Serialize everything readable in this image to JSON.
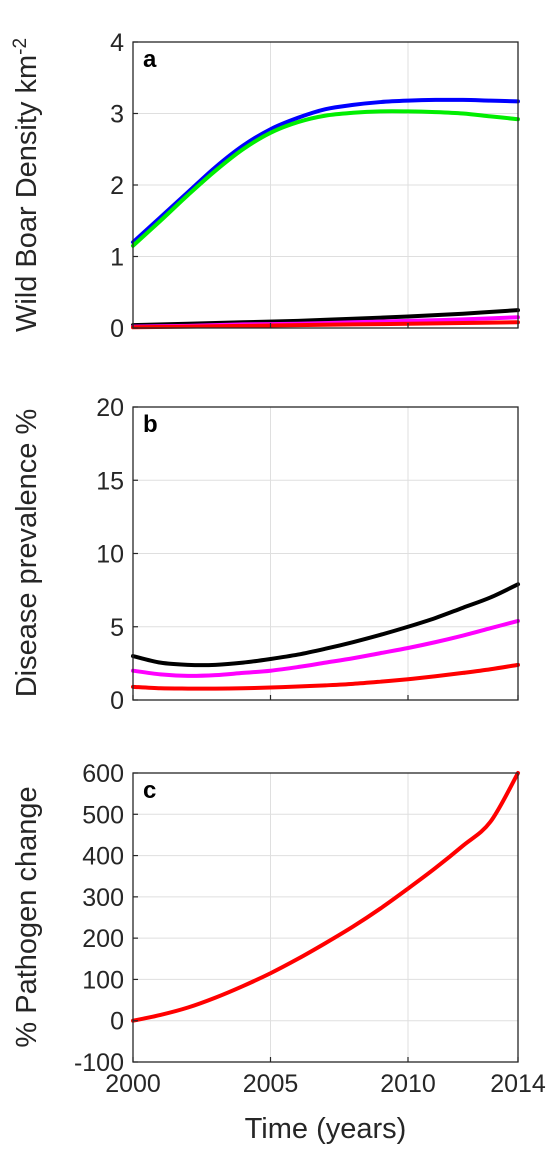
{
  "chart_data": [
    {
      "panel": "a",
      "type": "line",
      "ylabel": "Wild Boar Density km",
      "ylabel_sup": "-2",
      "xlim": [
        2000,
        2014
      ],
      "ylim": [
        0,
        4
      ],
      "xticks": [
        2000,
        2005,
        2010,
        2014
      ],
      "yticks": [
        0,
        1,
        2,
        3,
        4
      ],
      "ytick_labels": [
        "0",
        "1",
        "2",
        "3",
        "4"
      ],
      "grid": true,
      "series": [
        {
          "color": "#0000ff",
          "x": [
            2000,
            2001,
            2002,
            2003,
            2004,
            2005,
            2006,
            2007,
            2008,
            2009,
            2010,
            2011,
            2012,
            2013,
            2014
          ],
          "values": [
            1.2,
            1.55,
            1.9,
            2.25,
            2.55,
            2.78,
            2.94,
            3.06,
            3.12,
            3.16,
            3.18,
            3.19,
            3.19,
            3.18,
            3.17
          ]
        },
        {
          "color": "#00ee00",
          "x": [
            2000,
            2001,
            2002,
            2003,
            2004,
            2005,
            2006,
            2007,
            2008,
            2009,
            2010,
            2011,
            2012,
            2013,
            2014
          ],
          "values": [
            1.15,
            1.5,
            1.86,
            2.2,
            2.5,
            2.73,
            2.88,
            2.97,
            3.01,
            3.03,
            3.03,
            3.02,
            3.0,
            2.96,
            2.92
          ]
        },
        {
          "color": "#000000",
          "x": [
            2000,
            2002,
            2004,
            2006,
            2008,
            2010,
            2012,
            2014
          ],
          "values": [
            0.04,
            0.06,
            0.08,
            0.1,
            0.13,
            0.16,
            0.2,
            0.25
          ]
        },
        {
          "color": "#ff00ff",
          "x": [
            2000,
            2002,
            2004,
            2006,
            2008,
            2010,
            2012,
            2014
          ],
          "values": [
            0.02,
            0.03,
            0.05,
            0.06,
            0.08,
            0.1,
            0.12,
            0.15
          ]
        },
        {
          "color": "#ff0000",
          "x": [
            2000,
            2002,
            2004,
            2006,
            2008,
            2010,
            2012,
            2014
          ],
          "values": [
            0.01,
            0.02,
            0.03,
            0.04,
            0.05,
            0.06,
            0.07,
            0.08
          ]
        }
      ]
    },
    {
      "panel": "b",
      "type": "line",
      "ylabel": "Disease prevalence %",
      "xlim": [
        2000,
        2014
      ],
      "ylim": [
        0,
        20
      ],
      "xticks": [
        2000,
        2005,
        2010,
        2014
      ],
      "yticks": [
        0,
        5,
        10,
        15,
        20
      ],
      "ytick_labels": [
        "0",
        "5",
        "10",
        "15",
        "20"
      ],
      "grid": true,
      "series": [
        {
          "color": "#000000",
          "x": [
            2000,
            2001,
            2002,
            2003,
            2004,
            2005,
            2006,
            2007,
            2008,
            2009,
            2010,
            2011,
            2012,
            2013,
            2014
          ],
          "values": [
            3.0,
            2.55,
            2.4,
            2.4,
            2.55,
            2.8,
            3.1,
            3.5,
            3.95,
            4.45,
            5.0,
            5.6,
            6.3,
            7.0,
            7.9
          ]
        },
        {
          "color": "#ff00ff",
          "x": [
            2000,
            2001,
            2002,
            2003,
            2004,
            2005,
            2006,
            2007,
            2008,
            2009,
            2010,
            2011,
            2012,
            2013,
            2014
          ],
          "values": [
            2.0,
            1.75,
            1.65,
            1.7,
            1.85,
            2.0,
            2.25,
            2.55,
            2.85,
            3.2,
            3.55,
            3.95,
            4.4,
            4.9,
            5.4
          ]
        },
        {
          "color": "#ff0000",
          "x": [
            2000,
            2001,
            2002,
            2003,
            2004,
            2005,
            2006,
            2007,
            2008,
            2009,
            2010,
            2011,
            2012,
            2013,
            2014
          ],
          "values": [
            0.9,
            0.8,
            0.78,
            0.78,
            0.8,
            0.85,
            0.92,
            1.0,
            1.1,
            1.25,
            1.42,
            1.62,
            1.85,
            2.1,
            2.4
          ]
        }
      ]
    },
    {
      "panel": "c",
      "type": "line",
      "ylabel": "% Pathogen change",
      "xlabel": "Time (years)",
      "xlim": [
        2000,
        2014
      ],
      "ylim": [
        -100,
        600
      ],
      "xticks": [
        2000,
        2005,
        2010,
        2014
      ],
      "xtick_labels": [
        "2000",
        "2005",
        "2010",
        "2014"
      ],
      "yticks": [
        -100,
        0,
        100,
        200,
        300,
        400,
        500,
        600
      ],
      "ytick_labels": [
        "-100",
        "0",
        "100",
        "200",
        "300",
        "400",
        "500",
        "600"
      ],
      "grid": true,
      "series": [
        {
          "color": "#ff0000",
          "x": [
            2000,
            2001,
            2002,
            2003,
            2004,
            2005,
            2006,
            2007,
            2008,
            2009,
            2010,
            2011,
            2012,
            2013,
            2014
          ],
          "values": [
            0,
            14,
            32,
            56,
            84,
            115,
            150,
            188,
            228,
            272,
            320,
            370,
            424,
            482,
            600
          ]
        }
      ]
    }
  ]
}
